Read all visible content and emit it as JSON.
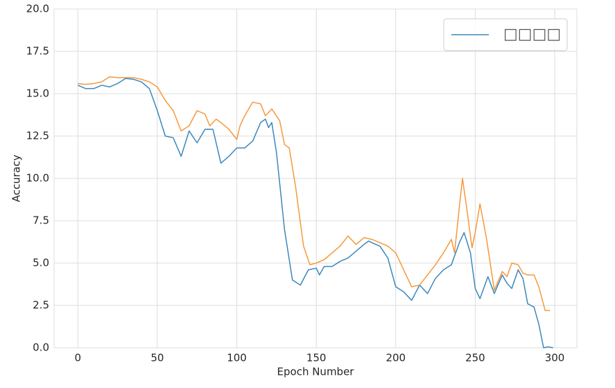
{
  "chart_data": {
    "type": "line",
    "x_label": "Epoch Number",
    "y_label": "Accuracy",
    "xlim": [
      -14.95,
      313.95
    ],
    "xticks": [
      0,
      50,
      100,
      150,
      200,
      250,
      300
    ],
    "ylim": [
      0,
      20
    ],
    "yticks": [
      {
        "value": 0,
        "label": "0.0"
      },
      2.5,
      {
        "value": 5,
        "label": "5.0"
      },
      7.5,
      {
        "value": 10,
        "label": "10.0"
      },
      12.5,
      {
        "value": 15,
        "label": "15.0"
      },
      17.5,
      {
        "value": 20,
        "label": "20.0"
      }
    ],
    "grid": true,
    "legend": "upper right",
    "series": [
      {
        "name": "□□□□",
        "color": "#3a87bd",
        "x": [
          0,
          5,
          10,
          15,
          20,
          25,
          30,
          35,
          40,
          45,
          50,
          55,
          60,
          65,
          70,
          75,
          80,
          85,
          90,
          95,
          100,
          105,
          110,
          115,
          118,
          120,
          122,
          125,
          130,
          135,
          140,
          145,
          150,
          152,
          155,
          160,
          165,
          170,
          175,
          180,
          183,
          185,
          190,
          195,
          200,
          205,
          210,
          215,
          220,
          225,
          230,
          235,
          240,
          243,
          247,
          250,
          253,
          258,
          262,
          267,
          270,
          273,
          277,
          280,
          283,
          287,
          290,
          293,
          296,
          299
        ],
        "values": [
          15.5,
          15.3,
          15.3,
          15.5,
          15.4,
          15.6,
          15.9,
          15.85,
          15.7,
          15.3,
          14.0,
          12.5,
          12.4,
          11.3,
          12.8,
          12.1,
          12.9,
          12.9,
          10.9,
          11.3,
          11.8,
          11.8,
          12.2,
          13.3,
          13.5,
          13.0,
          13.3,
          11.5,
          7.0,
          4.0,
          3.7,
          4.6,
          4.7,
          4.3,
          4.8,
          4.8,
          5.1,
          5.3,
          5.7,
          6.1,
          6.3,
          6.2,
          6.0,
          5.3,
          3.6,
          3.3,
          2.8,
          3.7,
          3.2,
          4.1,
          4.6,
          4.9,
          6.2,
          6.8,
          5.6,
          3.5,
          2.9,
          4.2,
          3.2,
          4.3,
          3.8,
          3.5,
          4.6,
          4.1,
          2.6,
          2.4,
          1.4,
          0.0,
          0.05,
          0.0
        ]
      },
      {
        "color": "#f5993a",
        "x": [
          0,
          5,
          10,
          15,
          20,
          25,
          30,
          35,
          40,
          45,
          50,
          55,
          60,
          65,
          70,
          75,
          80,
          83,
          87,
          90,
          95,
          100,
          102,
          105,
          110,
          115,
          118,
          122,
          127,
          130,
          133,
          137,
          142,
          146,
          150,
          155,
          160,
          165,
          170,
          175,
          180,
          185,
          190,
          195,
          200,
          205,
          210,
          215,
          220,
          225,
          230,
          235,
          237,
          240,
          242,
          245,
          248,
          250,
          253,
          257,
          262,
          267,
          270,
          273,
          277,
          280,
          283,
          287,
          290,
          294,
          297
        ],
        "values": [
          15.6,
          15.55,
          15.6,
          15.7,
          16.0,
          15.95,
          15.95,
          15.95,
          15.85,
          15.7,
          15.4,
          14.6,
          14.0,
          12.8,
          13.1,
          14.0,
          13.8,
          13.1,
          13.5,
          13.3,
          12.9,
          12.3,
          13.1,
          13.7,
          14.5,
          14.4,
          13.7,
          14.1,
          13.4,
          12.0,
          11.8,
          9.5,
          6.0,
          4.9,
          5.0,
          5.2,
          5.6,
          6.0,
          6.6,
          6.1,
          6.5,
          6.4,
          6.2,
          6.0,
          5.6,
          4.6,
          3.6,
          3.7,
          4.3,
          4.9,
          5.6,
          6.4,
          5.6,
          8.3,
          10.0,
          8.0,
          5.9,
          6.8,
          8.5,
          6.5,
          3.4,
          4.5,
          4.2,
          5.0,
          4.9,
          4.4,
          4.3,
          4.3,
          3.6,
          2.2,
          2.2
        ]
      }
    ]
  }
}
